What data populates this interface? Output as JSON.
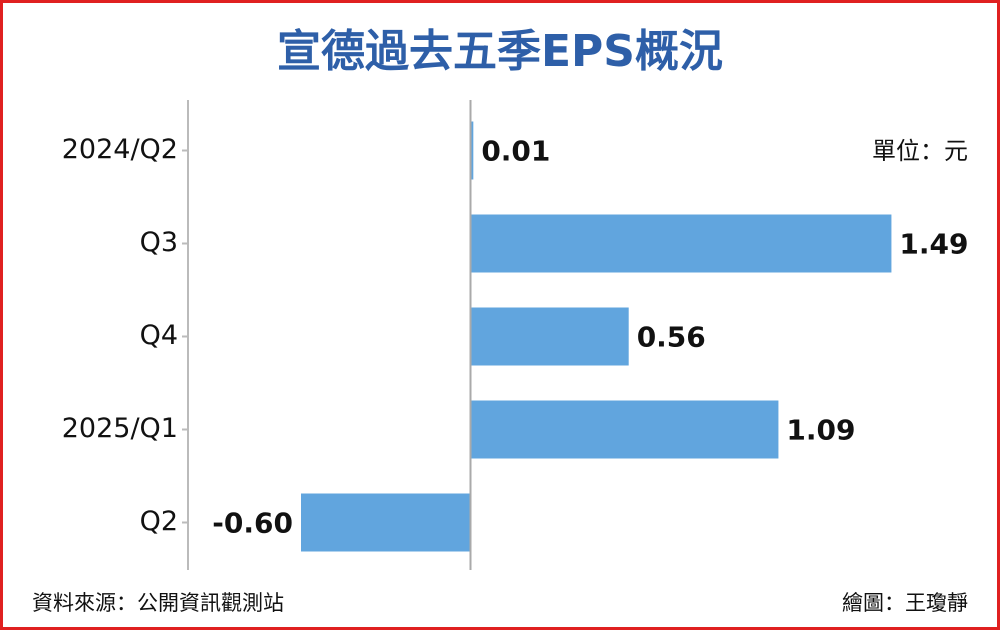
{
  "chart_data": {
    "type": "bar",
    "orientation": "horizontal",
    "title": "宣德過去五季EPS概況",
    "unit": "單位：元",
    "categories": [
      "2024/Q2",
      "Q3",
      "Q4",
      "2025/Q1",
      "Q2"
    ],
    "values": [
      0.01,
      1.49,
      0.56,
      1.09,
      -0.6
    ],
    "value_labels": [
      "0.01",
      "1.49",
      "0.56",
      "1.09",
      "-0.60"
    ],
    "color": "#61a5de",
    "xlim": [
      -1,
      1.8
    ],
    "source": "資料來源：公開資訊觀測站",
    "credit": "繪圖：王瓊靜"
  }
}
